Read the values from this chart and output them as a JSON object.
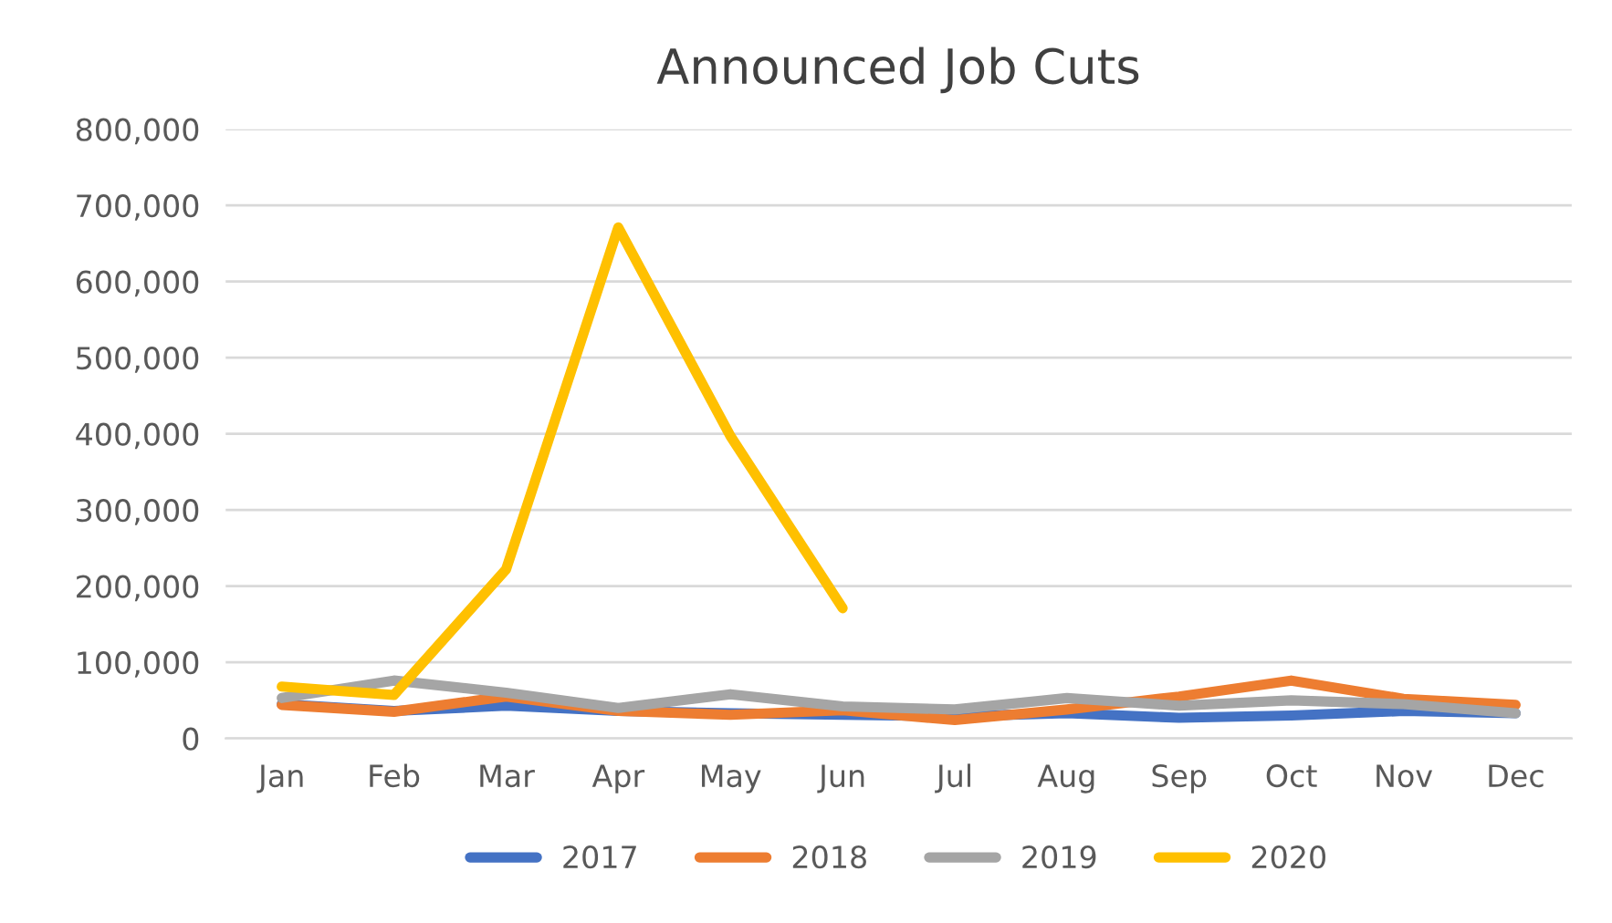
{
  "chart_data": {
    "type": "line",
    "title": "Announced Job Cuts",
    "categories": [
      "Jan",
      "Feb",
      "Mar",
      "Apr",
      "May",
      "Jun",
      "Jul",
      "Aug",
      "Sep",
      "Oct",
      "Nov",
      "Dec"
    ],
    "series": [
      {
        "name": "2017",
        "color": "#4472c4",
        "values": [
          45000,
          36000,
          43000,
          36000,
          33000,
          31000,
          29000,
          33000,
          27000,
          30000,
          36000,
          33000
        ]
      },
      {
        "name": "2018",
        "color": "#ed7d31",
        "values": [
          44000,
          35000,
          55000,
          36000,
          31000,
          37000,
          24000,
          38000,
          55000,
          76000,
          52000,
          44000
        ]
      },
      {
        "name": "2019",
        "color": "#a5a5a5",
        "values": [
          53000,
          76000,
          60000,
          40000,
          58000,
          42000,
          38000,
          53000,
          43000,
          50000,
          45000,
          33000
        ]
      },
      {
        "name": "2020",
        "color": "#ffc000",
        "values": [
          68000,
          57000,
          222000,
          671000,
          397000,
          171000,
          null,
          null,
          null,
          null,
          null,
          null
        ]
      }
    ],
    "ylim": [
      0,
      800000
    ],
    "yticks": [
      {
        "value": 0,
        "label": "0"
      },
      {
        "value": 100000,
        "label": "100,000"
      },
      {
        "value": 200000,
        "label": "200,000"
      },
      {
        "value": 300000,
        "label": "300,000"
      },
      {
        "value": 400000,
        "label": "400,000"
      },
      {
        "value": 500000,
        "label": "500,000"
      },
      {
        "value": 600000,
        "label": "600,000"
      },
      {
        "value": 700000,
        "label": "700,000"
      },
      {
        "value": 800000,
        "label": "800,000"
      }
    ],
    "grid": "y",
    "legend": "bottom",
    "line_style": "solid",
    "marker": "none"
  }
}
